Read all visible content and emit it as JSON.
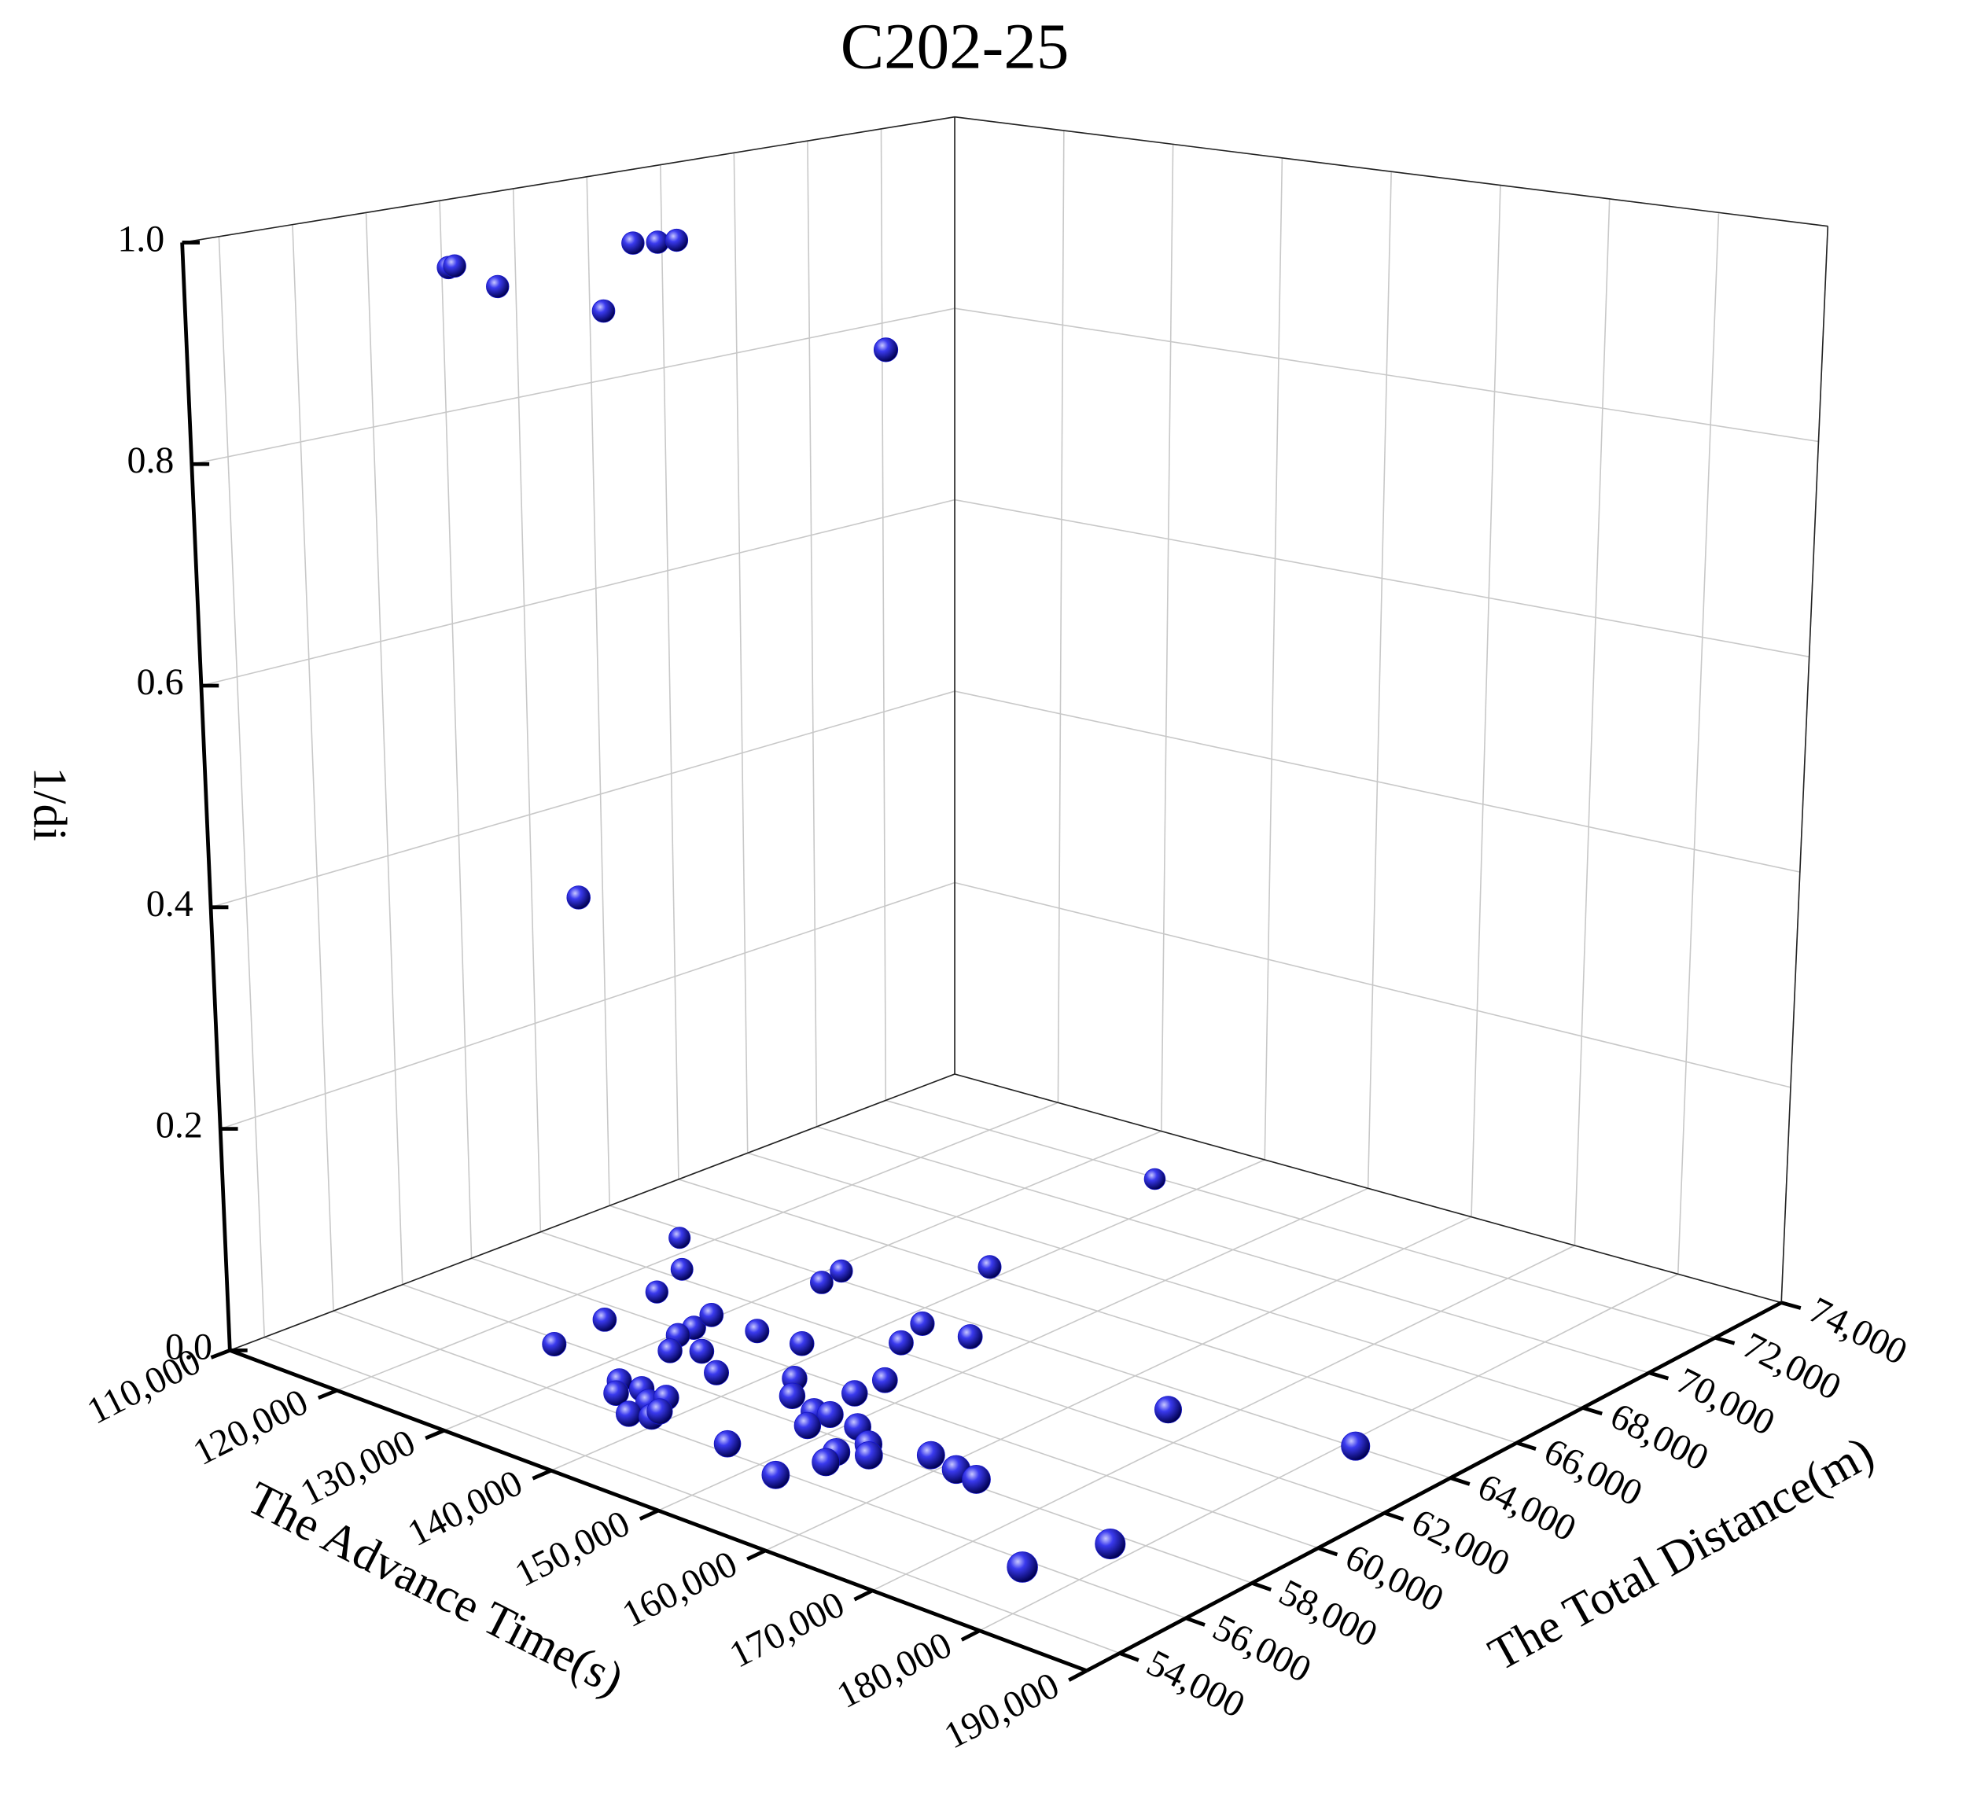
{
  "chart_data": {
    "type": "scatter3d",
    "title": "C202-25",
    "xlabel": "The Advance Time(s)",
    "ylabel": "The Total Distance(m)",
    "zlabel": "1/di",
    "color": "#1414c8",
    "grid": true,
    "xlim": [
      110000,
      190000
    ],
    "xticks": [
      {
        "value": 110000,
        "label": "110,000"
      },
      {
        "value": 120000,
        "label": "120,000"
      },
      {
        "value": 130000,
        "label": "130,000"
      },
      {
        "value": 140000,
        "label": "140,000"
      },
      {
        "value": 150000,
        "label": "150,000"
      },
      {
        "value": 160000,
        "label": "160,000"
      },
      {
        "value": 170000,
        "label": "170,000"
      },
      {
        "value": 180000,
        "label": "180,000"
      },
      {
        "value": 190000,
        "label": "190,000"
      }
    ],
    "ylim": [
      53000,
      74000
    ],
    "yticks": [
      {
        "value": 54000,
        "label": "54,000"
      },
      {
        "value": 56000,
        "label": "56,000"
      },
      {
        "value": 58000,
        "label": "58,000"
      },
      {
        "value": 60000,
        "label": "60,000"
      },
      {
        "value": 62000,
        "label": "62,000"
      },
      {
        "value": 64000,
        "label": "64,000"
      },
      {
        "value": 66000,
        "label": "66,000"
      },
      {
        "value": 68000,
        "label": "68,000"
      },
      {
        "value": 70000,
        "label": "70,000"
      },
      {
        "value": 72000,
        "label": "72,000"
      },
      {
        "value": 74000,
        "label": "74,000"
      }
    ],
    "zlim": [
      0,
      1
    ],
    "zticks": [
      {
        "value": 0,
        "label": "0.0"
      },
      0.2,
      0.4,
      0.6,
      0.8,
      {
        "value": 1,
        "label": "1.0"
      }
    ],
    "x": [
      129200,
      130100,
      124900,
      127700,
      127900,
      134300,
      135000,
      134400,
      135900,
      137600,
      139600,
      138000,
      141900,
      144400,
      136700,
      136300,
      145200,
      145900,
      147100,
      149400,
      150100,
      144400,
      135600,
      137700,
      136900,
      139600,
      140000,
      140000,
      141500,
      141300,
      147700,
      150700,
      151900,
      152000,
      150700,
      154800,
      148600,
      157400,
      158700,
      156600,
      157200,
      154700,
      162000,
      165000,
      167200,
      169800,
      184700,
      180400,
      178100,
      121200,
      121100,
      122600,
      127800,
      128600,
      129500,
      129900,
      144700,
      128900
    ],
    "y": [
      56500,
      57700,
      61500,
      60700,
      59900,
      59000,
      59300,
      58500,
      57800,
      58200,
      58000,
      59700,
      59800,
      58800,
      62000,
      62700,
      64300,
      62100,
      61100,
      59900,
      62200,
      69400,
      56400,
      56400,
      55900,
      56000,
      56400,
      55300,
      55500,
      55800,
      57700,
      57400,
      57500,
      56800,
      58600,
      57400,
      55500,
      56900,
      56500,
      56200,
      55700,
      55000,
      57300,
      57100,
      57000,
      61900,
      62800,
      56800,
      54900,
      56800,
      57000,
      57700,
      59000,
      59600,
      60000,
      60400,
      61600,
      57600
    ],
    "z": [
      0.03,
      0.04,
      0.05,
      0.04,
      0.03,
      0.03,
      0.04,
      0.03,
      0.03,
      0.03,
      0.02,
      0.03,
      0.03,
      0.02,
      0.04,
      0.04,
      0.05,
      0.03,
      0.03,
      0.02,
      0.03,
      0.06,
      0.02,
      0.02,
      0.02,
      0.02,
      0.02,
      0.02,
      0.02,
      0.02,
      0.03,
      0.03,
      0.03,
      0.03,
      0.03,
      0.03,
      0.02,
      0.03,
      0.03,
      0.03,
      0.03,
      0.02,
      0.03,
      0.03,
      0.03,
      0.03,
      0.03,
      0.02,
      0.02,
      0.98,
      0.98,
      0.96,
      0.94,
      1.0,
      1.0,
      1.0,
      0.92,
      0.42
    ]
  }
}
